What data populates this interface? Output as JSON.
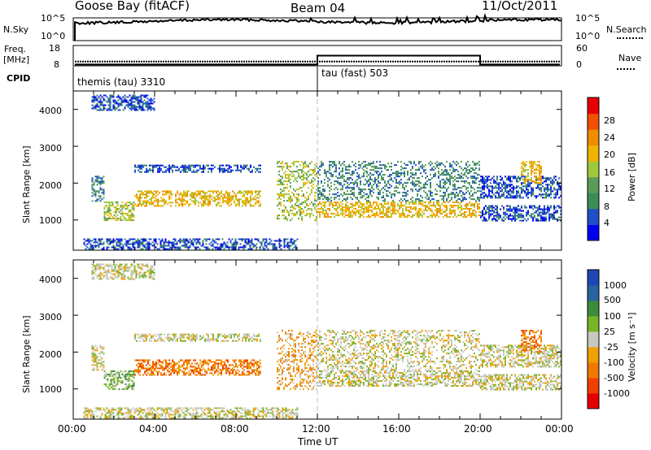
{
  "header": {
    "station": "Goose Bay (fitACF)",
    "beam": "Beam 04",
    "date": "11/Oct/2011"
  },
  "nsky_panel": {
    "left_label": "N.Sky",
    "right_label": "N.Search",
    "left_ticks": [
      "10^5",
      "10^0"
    ],
    "right_ticks": [
      "10^5",
      "10^0"
    ]
  },
  "freq_panel": {
    "left_label_line1": "Freq.",
    "left_label_line2": "[MHz]",
    "right_label": "Nave",
    "left_ticks": [
      "18",
      "8"
    ],
    "right_ticks": [
      "60",
      "0"
    ]
  },
  "cpid": {
    "label": "CPID",
    "segments": [
      {
        "name": "themis (tau) 3310",
        "start_hour": 0.0
      },
      {
        "name": "tau (fast) 503",
        "start_hour": 12.0
      }
    ]
  },
  "time_axis": {
    "label": "Time UT",
    "ticks": [
      "00:00",
      "04:00",
      "08:00",
      "12:00",
      "16:00",
      "20:00",
      "00:00"
    ]
  },
  "power_panel": {
    "ylabel": "Slant Range [km]",
    "yticks": [
      "1000",
      "2000",
      "3000",
      "4000"
    ],
    "colorbar_label": "Power [dB]",
    "colorbar_ticks": [
      "4",
      "8",
      "12",
      "16",
      "20",
      "24",
      "28"
    ],
    "colors": [
      "#0000f0",
      "#1f50c8",
      "#3c8c5a",
      "#5a9b5a",
      "#a0c83c",
      "#f0b400",
      "#f08c00",
      "#f05000",
      "#e60000"
    ]
  },
  "velocity_panel": {
    "ylabel": "Slant Range [km]",
    "yticks": [
      "1000",
      "2000",
      "3000",
      "4000"
    ],
    "colorbar_label": "Velocity [m s⁻¹]",
    "colorbar_ticks": [
      "1000",
      "500",
      "100",
      "25",
      "-25",
      "-100",
      "-500",
      "-1000"
    ],
    "colors": [
      "#1e46b4",
      "#2864a0",
      "#3c8c3c",
      "#78b428",
      "#c8c8c0",
      "#f0a000",
      "#f07800",
      "#f04000",
      "#e60000"
    ],
    "ground_scatter_color": "#c8c8c0"
  },
  "chart_data": {
    "type": "heatmap",
    "x_range_hours": [
      0,
      24
    ],
    "y_range_km": [
      180,
      4500
    ],
    "nsky_level": 0.85,
    "freq_mhz": 10.5,
    "nave_before_12": 4,
    "nave_after_12_to_20": 30,
    "scatter_regions": [
      {
        "t0": 0.9,
        "t1": 1.5,
        "r0": 1500,
        "r1": 2200,
        "dbin": 2,
        "vbin": 4
      },
      {
        "t0": 1.5,
        "t1": 3.0,
        "r0": 1000,
        "r1": 1500,
        "dbin": 4,
        "vbin": 3
      },
      {
        "t0": 3.0,
        "t1": 9.2,
        "r0": 1400,
        "r1": 1800,
        "dbin": 5,
        "vbin": 6
      },
      {
        "t0": 3.0,
        "t1": 9.2,
        "r0": 2300,
        "r1": 2500,
        "dbin": 1,
        "vbin": 4
      },
      {
        "t0": 10.0,
        "t1": 12.0,
        "r0": 1000,
        "r1": 2600,
        "dbin": 4,
        "vbin": 5
      },
      {
        "t0": 12.0,
        "t1": 20.0,
        "r0": 1100,
        "r1": 1500,
        "dbin": 5,
        "vbin": 4
      },
      {
        "t0": 12.0,
        "t1": 20.0,
        "r0": 1500,
        "r1": 2600,
        "dbin": 2,
        "vbin": 4
      },
      {
        "t0": 20.0,
        "t1": 24.0,
        "r0": 1000,
        "r1": 1400,
        "dbin": 1,
        "vbin": 4
      },
      {
        "t0": 20.0,
        "t1": 24.0,
        "r0": 1600,
        "r1": 2200,
        "dbin": 1,
        "vbin": 4
      },
      {
        "t0": 22.0,
        "t1": 23.0,
        "r0": 2000,
        "r1": 2600,
        "dbin": 5,
        "vbin": 6
      },
      {
        "t0": 0.5,
        "t1": 11.0,
        "r0": 200,
        "r1": 500,
        "dbin": 1,
        "vbin": 4
      },
      {
        "t0": 0.9,
        "t1": 4.0,
        "r0": 4000,
        "r1": 4400,
        "dbin": 1,
        "vbin": 4
      }
    ]
  }
}
